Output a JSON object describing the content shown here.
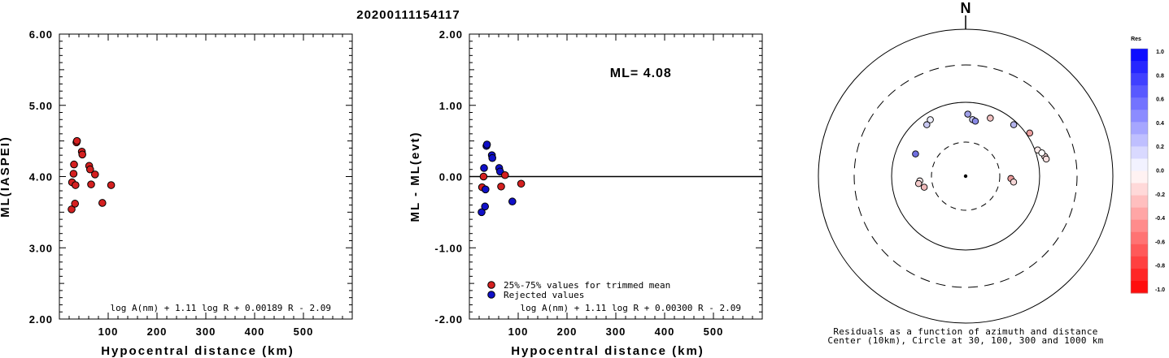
{
  "title": "20200111154117",
  "chart_data": [
    {
      "type": "scatter",
      "ylabel": "ML(IASPEI)",
      "xlabel": "Hypocentral distance (km)",
      "xlim": [
        0,
        600
      ],
      "ylim": [
        2.0,
        6.0
      ],
      "xticks": [
        "100",
        "200",
        "300",
        "400",
        "500"
      ],
      "yticks": [
        "2.00",
        "3.00",
        "4.00",
        "5.00",
        "6.00"
      ],
      "formula": "log A(nm) + 1.11 log R + 0.00189 R - 2.09",
      "points": [
        {
          "x": 25,
          "y": 3.54,
          "color": "#d42020"
        },
        {
          "x": 26,
          "y": 3.92,
          "color": "#d42020"
        },
        {
          "x": 29,
          "y": 4.04,
          "color": "#d42020"
        },
        {
          "x": 30,
          "y": 4.17,
          "color": "#d42020"
        },
        {
          "x": 32,
          "y": 3.62,
          "color": "#d42020"
        },
        {
          "x": 33,
          "y": 3.88,
          "color": "#d42020"
        },
        {
          "x": 35,
          "y": 4.48,
          "color": "#d42020"
        },
        {
          "x": 36,
          "y": 4.5,
          "color": "#d42020"
        },
        {
          "x": 46,
          "y": 4.35,
          "color": "#d42020"
        },
        {
          "x": 47,
          "y": 4.31,
          "color": "#d42020"
        },
        {
          "x": 61,
          "y": 4.15,
          "color": "#d42020"
        },
        {
          "x": 63,
          "y": 4.1,
          "color": "#d42020"
        },
        {
          "x": 65,
          "y": 3.89,
          "color": "#d42020"
        },
        {
          "x": 73,
          "y": 4.03,
          "color": "#d42020"
        },
        {
          "x": 88,
          "y": 3.63,
          "color": "#d42020"
        },
        {
          "x": 106,
          "y": 3.88,
          "color": "#d42020"
        }
      ]
    },
    {
      "type": "scatter",
      "ylabel": "ML - ML(evt)",
      "xlabel": "Hypocentral distance (km)",
      "xlim": [
        0,
        600
      ],
      "ylim": [
        -2.0,
        2.0
      ],
      "xticks": [
        "100",
        "200",
        "300",
        "400",
        "500"
      ],
      "yticks": [
        "-2.00",
        "-1.00",
        "0.00",
        "1.00",
        "2.00"
      ],
      "reference_line": 0.0,
      "annotation": "ML= 4.08",
      "formula": "log A(nm) + 1.11 log R + 0.00300 R - 2.09",
      "legend": [
        {
          "label": "25%-75% values for trimmed mean",
          "color": "#d42020"
        },
        {
          "label": "Rejected values",
          "color": "#1010c8"
        }
      ],
      "points": [
        {
          "x": 25,
          "y": -0.5,
          "color": "#1010c8"
        },
        {
          "x": 26,
          "y": -0.15,
          "color": "#d42020"
        },
        {
          "x": 29,
          "y": 0.0,
          "color": "#d42020"
        },
        {
          "x": 30,
          "y": 0.12,
          "color": "#1010c8"
        },
        {
          "x": 32,
          "y": -0.42,
          "color": "#1010c8"
        },
        {
          "x": 33,
          "y": -0.18,
          "color": "#1010c8"
        },
        {
          "x": 35,
          "y": 0.43,
          "color": "#1010c8"
        },
        {
          "x": 36,
          "y": 0.45,
          "color": "#1010c8"
        },
        {
          "x": 46,
          "y": 0.3,
          "color": "#1010c8"
        },
        {
          "x": 47,
          "y": 0.26,
          "color": "#1010c8"
        },
        {
          "x": 61,
          "y": 0.12,
          "color": "#1010c8"
        },
        {
          "x": 63,
          "y": 0.07,
          "color": "#1010c8"
        },
        {
          "x": 65,
          "y": -0.14,
          "color": "#d42020"
        },
        {
          "x": 73,
          "y": 0.02,
          "color": "#d42020"
        },
        {
          "x": 88,
          "y": -0.35,
          "color": "#1010c8"
        },
        {
          "x": 106,
          "y": -0.1,
          "color": "#d42020"
        }
      ]
    },
    {
      "type": "scatter",
      "subtype": "polar-residual-map",
      "north_label": "N",
      "circles_km": [
        30,
        100,
        300,
        1000
      ],
      "caption": [
        "Residuals as a function of azimuth and distance",
        "Center (10km), Circle at 30, 100, 300 and 1000 km"
      ],
      "colorbar": {
        "title": "Res",
        "ticks": [
          "1.0",
          "0.8",
          "0.6",
          "0.4",
          "0.2",
          "0.0",
          "-0.2",
          "-0.4",
          "-0.6",
          "-0.8",
          "-1.0"
        ]
      },
      "points": [
        {
          "azimuth_deg": 323,
          "distance_km": 75,
          "res": 0.45,
          "color": "#c8c8f0"
        },
        {
          "azimuth_deg": 328,
          "distance_km": 80,
          "res": 0.3,
          "color": "#eeeefa"
        },
        {
          "azimuth_deg": 294,
          "distance_km": 56,
          "res": 0.43,
          "color": "#7070e0"
        },
        {
          "azimuth_deg": 264,
          "distance_km": 43,
          "res": -0.02,
          "color": "#fbeaea"
        },
        {
          "azimuth_deg": 261,
          "distance_km": 45,
          "res": -0.1,
          "color": "#f3caca"
        },
        {
          "azimuth_deg": 255,
          "distance_km": 39,
          "res": -0.18,
          "color": "#eeb8b8"
        },
        {
          "azimuth_deg": 2,
          "distance_km": 70,
          "res": 0.3,
          "color": "#a0a0e8"
        },
        {
          "azimuth_deg": 7,
          "distance_km": 60,
          "res": 0.26,
          "color": "#c4c4f0"
        },
        {
          "azimuth_deg": 10,
          "distance_km": 58,
          "res": 0.12,
          "color": "#8888e4"
        },
        {
          "azimuth_deg": 23,
          "distance_km": 72,
          "res": -0.12,
          "color": "#f0c0c0"
        },
        {
          "azimuth_deg": 43,
          "distance_km": 90,
          "res": 0.08,
          "color": "#b4b4ec"
        },
        {
          "azimuth_deg": 56,
          "distance_km": 110,
          "res": -0.3,
          "color": "#ec9e9e"
        },
        {
          "azimuth_deg": 70,
          "distance_km": 108,
          "res": -0.02,
          "color": "#fbeaea"
        },
        {
          "azimuth_deg": 76,
          "distance_km": 125,
          "res": -0.08,
          "color": "#f5d6d6"
        },
        {
          "azimuth_deg": 73,
          "distance_km": 118,
          "res": 0.02,
          "color": "#ffffff"
        },
        {
          "azimuth_deg": 78,
          "distance_km": 128,
          "res": -0.05,
          "color": "#f8e0e0"
        },
        {
          "azimuth_deg": 93,
          "distance_km": 42,
          "res": -0.35,
          "color": "#e89a9a"
        },
        {
          "azimuth_deg": 97,
          "distance_km": 46,
          "res": -0.1,
          "color": "#f5d6d6"
        }
      ]
    }
  ]
}
